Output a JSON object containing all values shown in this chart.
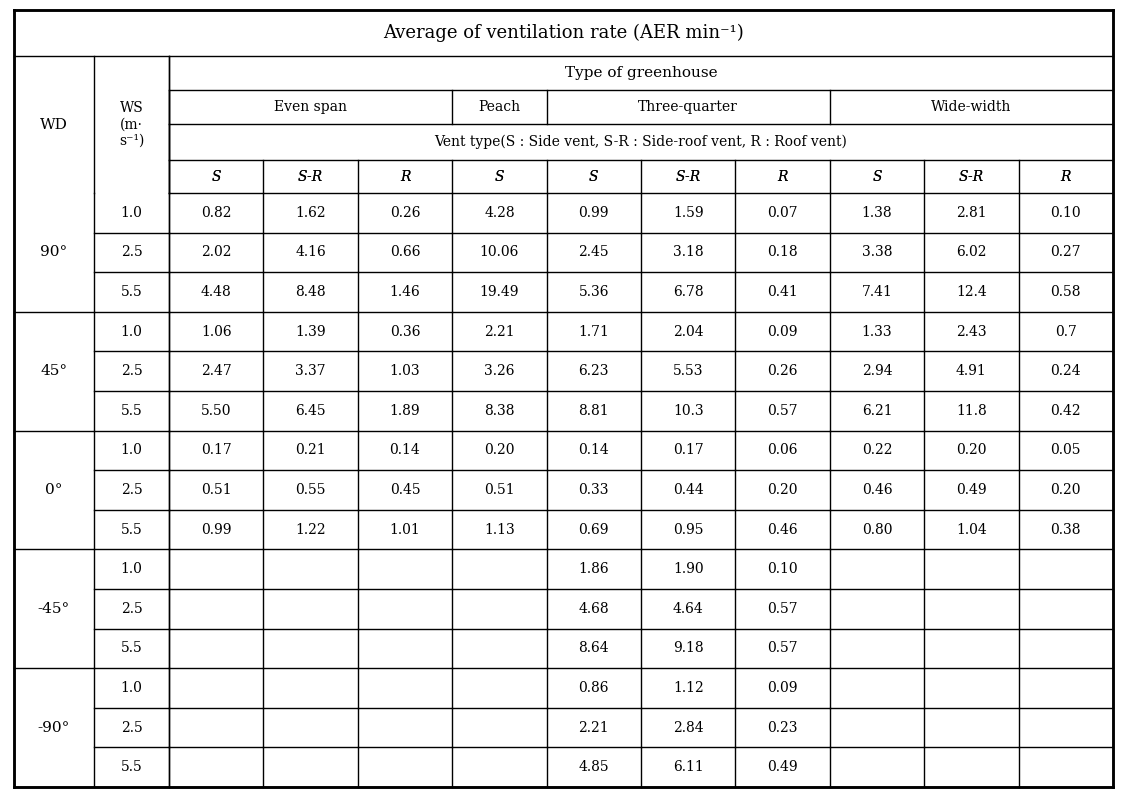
{
  "title": "Average of ventilation rate (AER min⁻¹)",
  "vent_type_text": "Vent type(S : Side vent, S-R : Side-roof vent, R : Roof vent)",
  "wind_directions": [
    "90°",
    "45°",
    "0°",
    "-45°",
    "-90°"
  ],
  "wind_speeds": [
    "1.0",
    "2.5",
    "5.5"
  ],
  "data": {
    "90°": {
      "1.0": [
        "0.82",
        "1.62",
        "0.26",
        "4.28",
        "0.99",
        "1.59",
        "0.07",
        "1.38",
        "2.81",
        "0.10"
      ],
      "2.5": [
        "2.02",
        "4.16",
        "0.66",
        "10.06",
        "2.45",
        "3.18",
        "0.18",
        "3.38",
        "6.02",
        "0.27"
      ],
      "5.5": [
        "4.48",
        "8.48",
        "1.46",
        "19.49",
        "5.36",
        "6.78",
        "0.41",
        "7.41",
        "12.4",
        "0.58"
      ]
    },
    "45°": {
      "1.0": [
        "1.06",
        "1.39",
        "0.36",
        "2.21",
        "1.71",
        "2.04",
        "0.09",
        "1.33",
        "2.43",
        "0.7"
      ],
      "2.5": [
        "2.47",
        "3.37",
        "1.03",
        "3.26",
        "6.23",
        "5.53",
        "0.26",
        "2.94",
        "4.91",
        "0.24"
      ],
      "5.5": [
        "5.50",
        "6.45",
        "1.89",
        "8.38",
        "8.81",
        "10.3",
        "0.57",
        "6.21",
        "11.8",
        "0.42"
      ]
    },
    "0°": {
      "1.0": [
        "0.17",
        "0.21",
        "0.14",
        "0.20",
        "0.14",
        "0.17",
        "0.06",
        "0.22",
        "0.20",
        "0.05"
      ],
      "2.5": [
        "0.51",
        "0.55",
        "0.45",
        "0.51",
        "0.33",
        "0.44",
        "0.20",
        "0.46",
        "0.49",
        "0.20"
      ],
      "5.5": [
        "0.99",
        "1.22",
        "1.01",
        "1.13",
        "0.69",
        "0.95",
        "0.46",
        "0.80",
        "1.04",
        "0.38"
      ]
    },
    "-45°": {
      "1.0": [
        "",
        "",
        "",
        "",
        "1.86",
        "1.90",
        "0.10",
        "",
        "",
        ""
      ],
      "2.5": [
        "",
        "",
        "",
        "",
        "4.68",
        "4.64",
        "0.57",
        "",
        "",
        ""
      ],
      "5.5": [
        "",
        "",
        "",
        "",
        "8.64",
        "9.18",
        "0.57",
        "",
        "",
        ""
      ]
    },
    "-90°": {
      "1.0": [
        "",
        "",
        "",
        "",
        "0.86",
        "1.12",
        "0.09",
        "",
        "",
        ""
      ],
      "2.5": [
        "",
        "",
        "",
        "",
        "2.21",
        "2.84",
        "0.23",
        "",
        "",
        ""
      ],
      "5.5": [
        "",
        "",
        "",
        "",
        "4.85",
        "6.11",
        "0.49",
        "",
        "",
        ""
      ]
    }
  }
}
